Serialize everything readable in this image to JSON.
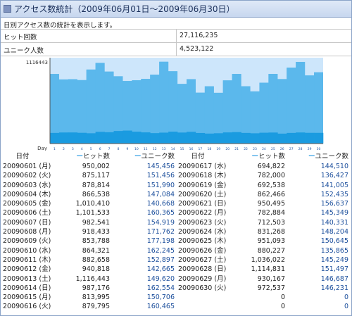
{
  "title": "アクセス数統計（2009年06月01日～2009年06月30日）",
  "description": "日別アクセス数の統計を表示します。",
  "summary": [
    {
      "label": "ヒット回数",
      "value": "27,116,235"
    },
    {
      "label": "ユニーク人数",
      "value": "4,523,122"
    }
  ],
  "colors": {
    "hits": "#5bb8ec",
    "unique": "#1a9be0",
    "plot_bg": "#cde6fb"
  },
  "chart_data": {
    "type": "bar",
    "title": "",
    "xlabel": "Day",
    "ylabel": "",
    "max_label": "1116443",
    "ylim": [
      0,
      1116443
    ],
    "categories": [
      "1",
      "2",
      "3",
      "4",
      "5",
      "6",
      "7",
      "8",
      "9",
      "10",
      "11",
      "12",
      "13",
      "14",
      "15",
      "16",
      "17",
      "18",
      "19",
      "20",
      "21",
      "22",
      "23",
      "24",
      "25",
      "26",
      "27",
      "28",
      "29",
      "30"
    ],
    "series": [
      {
        "name": "ヒット数",
        "values": [
          950002,
          875117,
          878814,
          866538,
          1010410,
          1101533,
          982541,
          918433,
          853788,
          864321,
          882658,
          940818,
          1116443,
          987176,
          813995,
          879795,
          694822,
          782000,
          692538,
          862466,
          950495,
          782884,
          712503,
          831268,
          951093,
          880227,
          1036022,
          1114831,
          930167,
          972537
        ]
      },
      {
        "name": "ユニーク数",
        "values": [
          145456,
          151456,
          151990,
          147084,
          140668,
          160365,
          154919,
          171762,
          177198,
          162245,
          152897,
          142665,
          149620,
          162554,
          150706,
          160465,
          144510,
          136427,
          141005,
          152435,
          156637,
          145349,
          140331,
          148204,
          150645,
          135865,
          145249,
          151497,
          146687,
          146231
        ]
      }
    ]
  },
  "table": {
    "headers": [
      "日付",
      "ヒット数",
      "ユニーク数",
      "日付",
      "ヒット数",
      "ユニーク数"
    ],
    "rows": [
      [
        "20090601 (月)",
        "950,002",
        "145,456",
        "20090617 (水)",
        "694,822",
        "144,510"
      ],
      [
        "20090602 (火)",
        "875,117",
        "151,456",
        "20090618 (木)",
        "782,000",
        "136,427"
      ],
      [
        "20090603 (水)",
        "878,814",
        "151,990",
        "20090619 (金)",
        "692,538",
        "141,005"
      ],
      [
        "20090604 (木)",
        "866,538",
        "147,084",
        "20090620 (土)",
        "862,466",
        "152,435"
      ],
      [
        "20090605 (金)",
        "1,010,410",
        "140,668",
        "20090621 (日)",
        "950,495",
        "156,637"
      ],
      [
        "20090606 (土)",
        "1,101,533",
        "160,365",
        "20090622 (月)",
        "782,884",
        "145,349"
      ],
      [
        "20090607 (日)",
        "982,541",
        "154,919",
        "20090623 (火)",
        "712,503",
        "140,331"
      ],
      [
        "20090608 (月)",
        "918,433",
        "171,762",
        "20090624 (水)",
        "831,268",
        "148,204"
      ],
      [
        "20090609 (火)",
        "853,788",
        "177,198",
        "20090625 (木)",
        "951,093",
        "150,645"
      ],
      [
        "20090610 (水)",
        "864,321",
        "162,245",
        "20090626 (金)",
        "880,227",
        "135,865"
      ],
      [
        "20090611 (木)",
        "882,658",
        "152,897",
        "20090627 (土)",
        "1,036,022",
        "145,249"
      ],
      [
        "20090612 (金)",
        "940,818",
        "142,665",
        "20090628 (日)",
        "1,114,831",
        "151,497"
      ],
      [
        "20090613 (土)",
        "1,116,443",
        "149,620",
        "20090629 (月)",
        "930,167",
        "146,687"
      ],
      [
        "20090614 (日)",
        "987,176",
        "162,554",
        "20090630 (火)",
        "972,537",
        "146,231"
      ],
      [
        "20090615 (月)",
        "813,995",
        "150,706",
        "",
        "0",
        "0"
      ],
      [
        "20090616 (火)",
        "879,795",
        "160,465",
        "",
        "0",
        "0"
      ]
    ]
  }
}
